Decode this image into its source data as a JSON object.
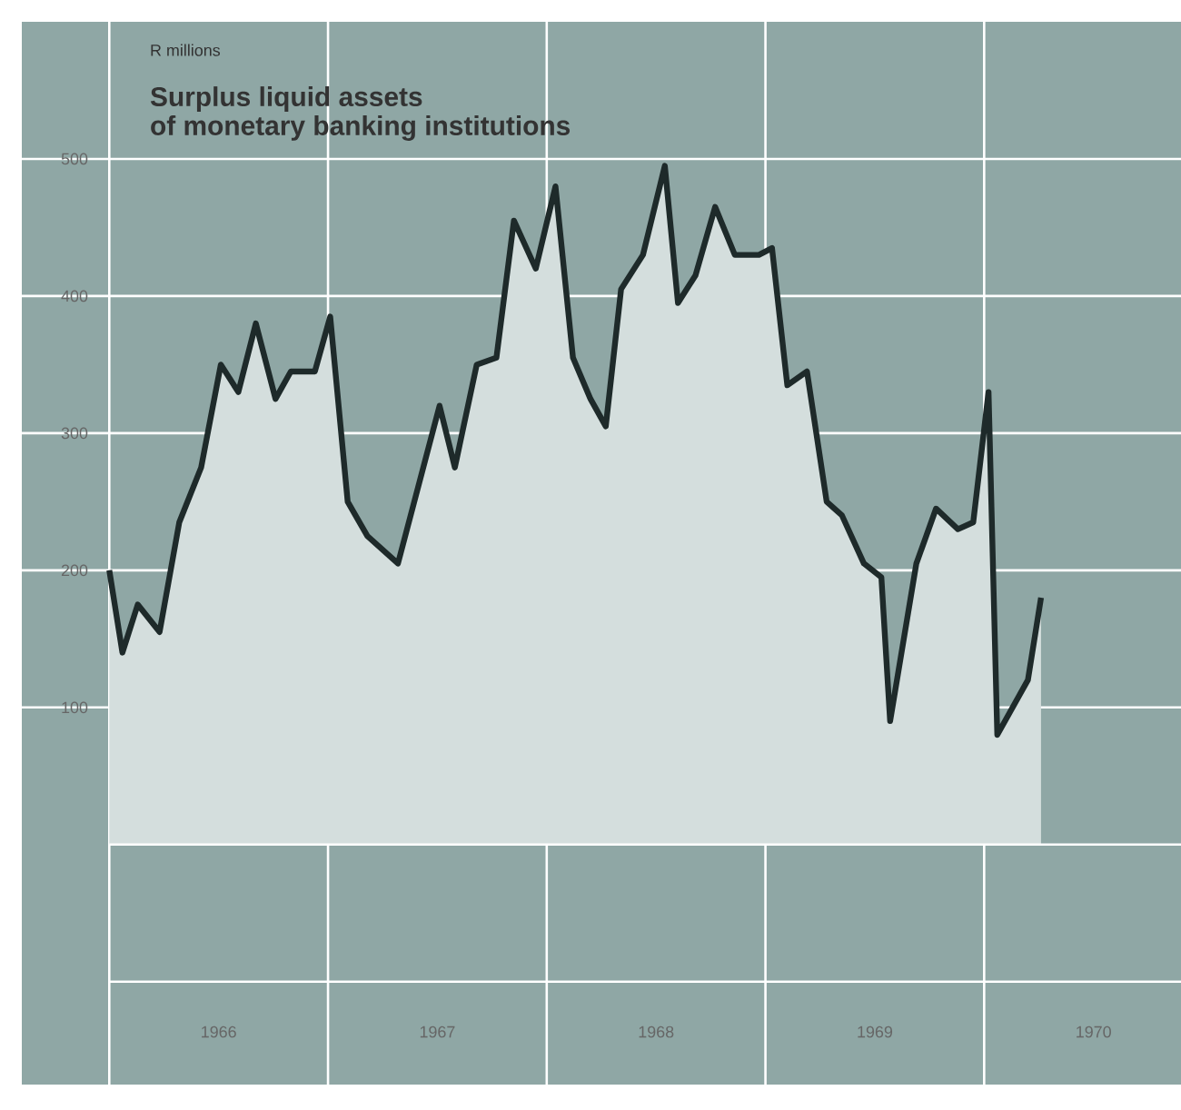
{
  "chart_data": {
    "type": "area",
    "title": "Surplus liquid assets\nof monetary banking institutions",
    "ylabel": "R millions",
    "x": [
      1966.0,
      1966.06,
      1966.13,
      1966.23,
      1966.32,
      1966.42,
      1966.51,
      1966.59,
      1966.67,
      1966.76,
      1966.83,
      1966.94,
      1967.01,
      1967.09,
      1967.18,
      1967.32,
      1967.51,
      1967.58,
      1967.68,
      1967.77,
      1967.85,
      1967.95,
      1968.04,
      1968.12,
      1968.2,
      1968.27,
      1968.34,
      1968.44,
      1968.54,
      1968.6,
      1968.68,
      1968.77,
      1968.86,
      1968.97,
      1969.03,
      1969.1,
      1969.19,
      1969.28,
      1969.35,
      1969.45,
      1969.53,
      1969.57,
      1969.69,
      1969.78,
      1969.88,
      1969.95,
      1970.02,
      1970.06,
      1970.2,
      1970.26
    ],
    "series": [
      {
        "color": "#1e2a2a",
        "values": [
          200,
          140,
          175,
          155,
          235,
          275,
          350,
          330,
          380,
          325,
          345,
          345,
          385,
          250,
          225,
          205,
          320,
          275,
          350,
          355,
          455,
          420,
          480,
          355,
          325,
          305,
          405,
          430,
          495,
          395,
          415,
          465,
          430,
          430,
          435,
          335,
          345,
          250,
          240,
          205,
          195,
          90,
          205,
          245,
          230,
          235,
          330,
          80,
          120,
          180
        ]
      }
    ],
    "xlim": [
      1965.6,
      1970.9
    ],
    "ylim": [
      -175,
      600
    ],
    "xticks": [
      {
        "value": 1966,
        "label": null
      },
      {
        "value": 1966.5,
        "label": "1966"
      },
      {
        "value": 1967,
        "label": null
      },
      {
        "value": 1967.5,
        "label": "1967"
      },
      {
        "value": 1968,
        "label": null
      },
      {
        "value": 1968.5,
        "label": "1968"
      },
      {
        "value": 1969,
        "label": null
      },
      {
        "value": 1969.5,
        "label": "1969"
      },
      {
        "value": 1970,
        "label": null
      },
      {
        "value": 1970.5,
        "label": "1970"
      }
    ],
    "yticks": [
      {
        "value": -100,
        "label": null
      },
      {
        "value": 0,
        "label": null
      },
      100,
      200,
      300,
      400,
      500
    ],
    "grid": true
  }
}
